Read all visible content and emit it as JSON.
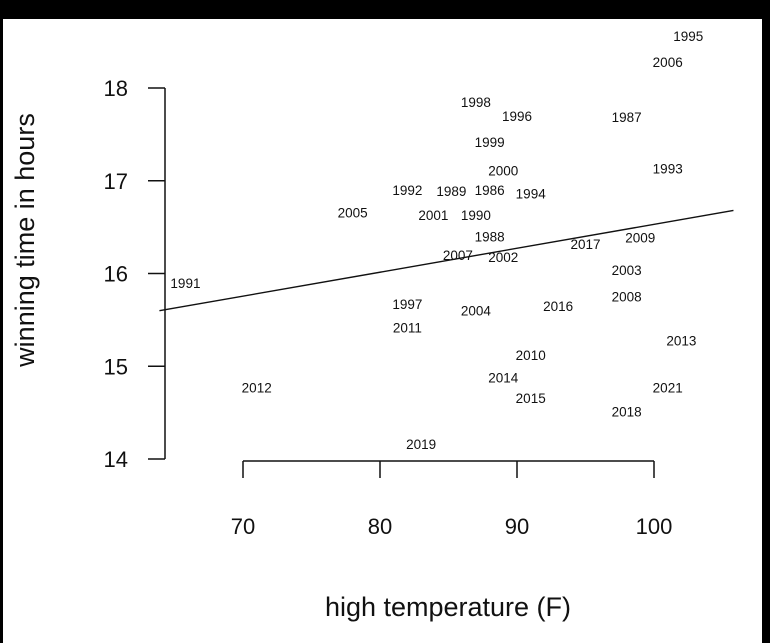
{
  "chart_data": {
    "type": "scatter",
    "title": "",
    "xlabel": "high temperature (F)",
    "ylabel": "winning time in hours",
    "xlim": [
      63.9,
      105.8
    ],
    "ylim": [
      13.9,
      18.8
    ],
    "xticks": [
      70,
      80,
      90,
      100
    ],
    "yticks": [
      14,
      15,
      16,
      17,
      18
    ],
    "grid": false,
    "marker": "year text label",
    "points": [
      {
        "label": "1995",
        "x": 102.5,
        "y": 18.56
      },
      {
        "label": "2006",
        "x": 101.0,
        "y": 18.28
      },
      {
        "label": "1998",
        "x": 87.0,
        "y": 17.85
      },
      {
        "label": "1996",
        "x": 90.0,
        "y": 17.7
      },
      {
        "label": "1999",
        "x": 88.0,
        "y": 17.56
      },
      {
        "label": "1987",
        "x": 98.0,
        "y": 17.69
      },
      {
        "label": "2000",
        "x": 89.0,
        "y": 17.25
      },
      {
        "label": "1993",
        "x": 101.0,
        "y": 17.13
      },
      {
        "label": "1992",
        "x": 82.0,
        "y": 16.9
      },
      {
        "label": "1989",
        "x": 83.9,
        "y": 16.89
      },
      {
        "label": "1994",
        "x": 91.0,
        "y": 16.86
      },
      {
        "label": "2005",
        "x": 78.0,
        "y": 16.66
      },
      {
        "label": "2001",
        "x": 83.9,
        "y": 16.63
      },
      {
        "label": "1990",
        "x": 87.0,
        "y": 16.63
      },
      {
        "label": "1986",
        "x": 88.0,
        "y": 16.62
      },
      {
        "label": "1988",
        "x": 88.0,
        "y": 16.4
      },
      {
        "label": "2002",
        "x": 89.0,
        "y": 16.32
      },
      {
        "label": "2007",
        "x": 87.0,
        "y": 16.2
      },
      {
        "label": "2017",
        "x": 95.0,
        "y": 16.32
      },
      {
        "label": "2009",
        "x": 99.0,
        "y": 16.39
      },
      {
        "label": "2003",
        "x": 98.0,
        "y": 16.04
      },
      {
        "label": "2008",
        "x": 98.0,
        "y": 16.03
      },
      {
        "label": "1991",
        "x": 65.8,
        "y": 15.9
      },
      {
        "label": "1997",
        "x": 82.0,
        "y": 15.67
      },
      {
        "label": "2011",
        "x": 82.0,
        "y": 15.56
      },
      {
        "label": "2004",
        "x": 87.0,
        "y": 15.6
      },
      {
        "label": "2016",
        "x": 93.0,
        "y": 15.65
      },
      {
        "label": "2013",
        "x": 102.0,
        "y": 15.28
      },
      {
        "label": "2010",
        "x": 91.0,
        "y": 15.12
      },
      {
        "label": "2012",
        "x": 71.0,
        "y": 14.77
      },
      {
        "label": "2014",
        "x": 89.0,
        "y": 14.88
      },
      {
        "label": "2015",
        "x": 91.0,
        "y": 14.8
      },
      {
        "label": "2021",
        "x": 101.0,
        "y": 14.77
      },
      {
        "label": "2018",
        "x": 98.0,
        "y": 14.51
      },
      {
        "label": "2019",
        "x": 83.0,
        "y": 14.16
      }
    ],
    "fit_line": {
      "intercept": 13.95,
      "slope": 0.0258
    }
  }
}
